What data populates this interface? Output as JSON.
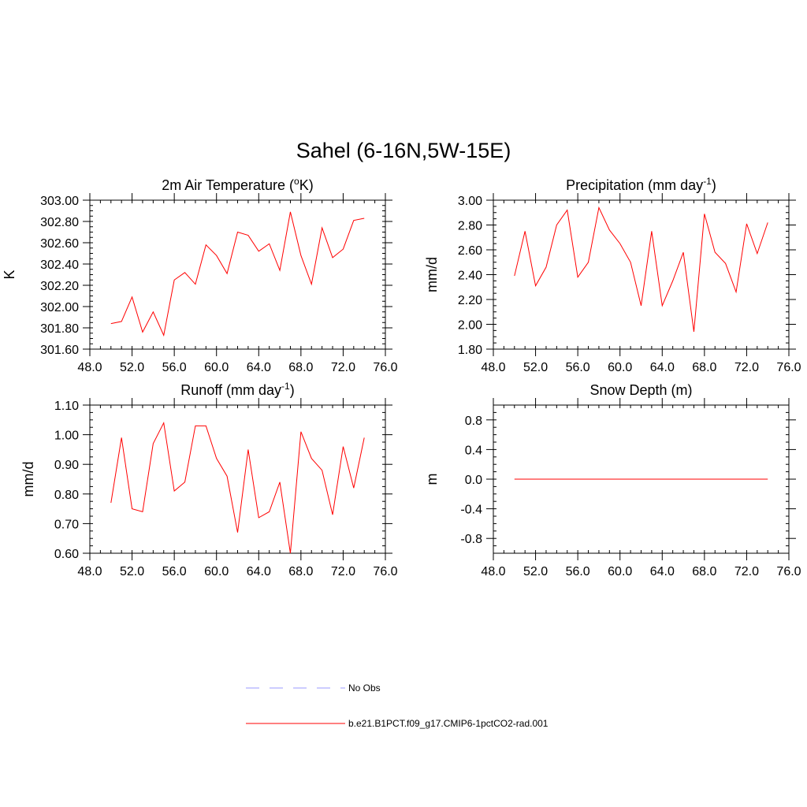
{
  "figure": {
    "title": "Sahel (6-16N,5W-15E)"
  },
  "colors": {
    "model_line": "#ff0000",
    "obs_line": "#9999ff",
    "axis": "#000000"
  },
  "legend": {
    "entries": [
      {
        "label": "No Obs",
        "style": "dashed",
        "color": "#9999ff"
      },
      {
        "label": "b.e21.B1PCT.f09_g17.CMIP6-1pctCO2-rad.001",
        "style": "solid",
        "color": "#ff0000"
      }
    ]
  },
  "chart_data": [
    {
      "type": "line",
      "title": "2m Air Temperature (",
      "title_sup": "o",
      "title_after": "K)",
      "ylabel": "K",
      "xlim": [
        48,
        76
      ],
      "ylim": [
        301.6,
        303.0
      ],
      "xticks": [
        48,
        52,
        56,
        60,
        64,
        68,
        72,
        76
      ],
      "yticks": [
        301.6,
        301.8,
        302.0,
        302.2,
        302.4,
        302.6,
        302.8,
        303.0
      ],
      "tick_decimals": 2,
      "minor_x": 1,
      "minor_y": 0.05,
      "x": [
        50,
        51,
        52,
        53,
        54,
        55,
        56,
        57,
        58,
        59,
        60,
        61,
        62,
        63,
        64,
        65,
        66,
        67,
        68,
        69,
        70,
        71,
        72,
        73,
        74
      ],
      "series": [
        {
          "values": [
            301.84,
            301.86,
            302.09,
            301.76,
            301.95,
            301.73,
            302.25,
            302.32,
            302.21,
            302.58,
            302.48,
            302.31,
            302.7,
            302.67,
            302.52,
            302.59,
            302.34,
            302.89,
            302.48,
            302.21,
            302.74,
            302.46,
            302.54,
            302.81,
            302.83
          ]
        }
      ]
    },
    {
      "type": "line",
      "title": "Precipitation (mm day",
      "title_sup": "-1",
      "title_after": ")",
      "ylabel": "mm/d",
      "xlim": [
        48,
        76
      ],
      "ylim": [
        1.8,
        3.0
      ],
      "xticks": [
        48,
        52,
        56,
        60,
        64,
        68,
        72,
        76
      ],
      "yticks": [
        1.8,
        2.0,
        2.2,
        2.4,
        2.6,
        2.8,
        3.0
      ],
      "tick_decimals": 2,
      "minor_x": 1,
      "minor_y": 0.05,
      "x": [
        50,
        51,
        52,
        53,
        54,
        55,
        56,
        57,
        58,
        59,
        60,
        61,
        62,
        63,
        64,
        65,
        66,
        67,
        68,
        69,
        70,
        71,
        72,
        73,
        74
      ],
      "series": [
        {
          "values": [
            2.39,
            2.75,
            2.31,
            2.46,
            2.8,
            2.92,
            2.38,
            2.5,
            2.94,
            2.76,
            2.65,
            2.5,
            2.15,
            2.75,
            2.15,
            2.35,
            2.58,
            1.94,
            2.89,
            2.58,
            2.49,
            2.26,
            2.81,
            2.57,
            2.82
          ]
        }
      ]
    },
    {
      "type": "line",
      "title": "Runoff (mm day",
      "title_sup": "-1",
      "title_after": ")",
      "ylabel": "mm/d",
      "xlim": [
        48,
        76
      ],
      "ylim": [
        0.6,
        1.1
      ],
      "xticks": [
        48,
        52,
        56,
        60,
        64,
        68,
        72,
        76
      ],
      "yticks": [
        0.6,
        0.7,
        0.8,
        0.9,
        1.0,
        1.1
      ],
      "tick_decimals": 2,
      "minor_x": 1,
      "minor_y": 0.025,
      "x": [
        50,
        51,
        52,
        53,
        54,
        55,
        56,
        57,
        58,
        59,
        60,
        61,
        62,
        63,
        64,
        65,
        66,
        67,
        68,
        69,
        70,
        71,
        72,
        73,
        74
      ],
      "series": [
        {
          "values": [
            0.77,
            0.99,
            0.75,
            0.74,
            0.97,
            1.04,
            0.81,
            0.84,
            1.03,
            1.03,
            0.92,
            0.86,
            0.67,
            0.95,
            0.72,
            0.74,
            0.84,
            0.6,
            1.01,
            0.92,
            0.88,
            0.73,
            0.96,
            0.82,
            0.99
          ]
        }
      ]
    },
    {
      "type": "line",
      "title": "Snow Depth (m)",
      "title_sup": "",
      "title_after": "",
      "ylabel": "m",
      "xlim": [
        48,
        76
      ],
      "ylim": [
        -1.0,
        1.0
      ],
      "xticks": [
        48,
        52,
        56,
        60,
        64,
        68,
        72,
        76
      ],
      "yticks": [
        -0.8,
        -0.4,
        0.0,
        0.4,
        0.8
      ],
      "tick_decimals": 1,
      "minor_x": 1,
      "minor_y": 0.1,
      "x": [
        50,
        51,
        52,
        53,
        54,
        55,
        56,
        57,
        58,
        59,
        60,
        61,
        62,
        63,
        64,
        65,
        66,
        67,
        68,
        69,
        70,
        71,
        72,
        73,
        74
      ],
      "series": [
        {
          "values": [
            0,
            0,
            0,
            0,
            0,
            0,
            0,
            0,
            0,
            0,
            0,
            0,
            0,
            0,
            0,
            0,
            0,
            0,
            0,
            0,
            0,
            0,
            0,
            0,
            0
          ]
        }
      ]
    }
  ]
}
